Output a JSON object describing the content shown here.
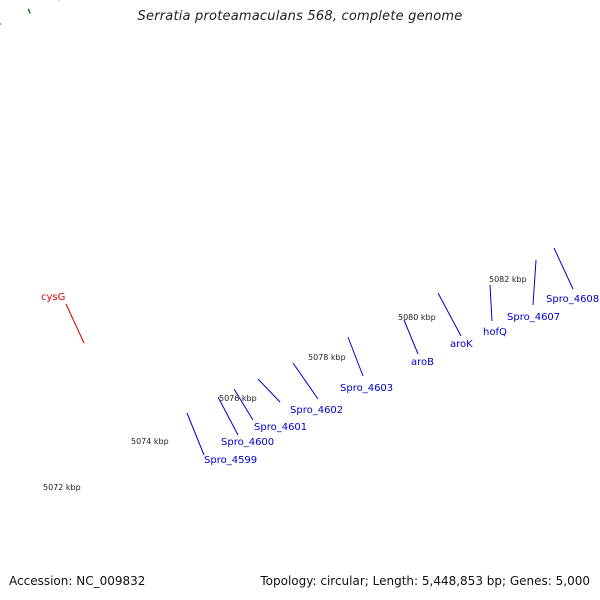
{
  "title": "Serratia proteamaculans 568, complete genome",
  "accession": "Accession: NC_009832",
  "summary": "Topology: circular; Length: 5,448,853 bp; Genes: 5,000",
  "tick_labels": [
    "5072 kbp",
    "5074 kbp",
    "5076 kbp",
    "5078 kbp",
    "5080 kbp",
    "5082 kbp"
  ],
  "colors": {
    "backbone": "#8a8a8a",
    "tick": "#1e7a1e",
    "forward_gene": "#1010ee",
    "reverse_gene": "#ee1010",
    "label_blue": "#0000cc",
    "label_red": "#dd0000"
  },
  "features": [
    {
      "name": "cysG",
      "color": "#ee0000",
      "label_color": "red"
    },
    {
      "name": "Spro_4599",
      "color": "#ee8888",
      "label_color": "blue"
    },
    {
      "name": "Spro_4600",
      "color": "#c8c8c8",
      "label_color": "blue"
    },
    {
      "name": "Spro_4601",
      "color": "#22c8cc",
      "label_color": "blue"
    },
    {
      "name": "Spro_4602",
      "color": "#e0189a",
      "label_color": "blue"
    },
    {
      "name": "Spro_4603",
      "color": "#555555",
      "label_color": "blue"
    },
    {
      "name": "aroB",
      "color": "#4a7fbf",
      "label_color": "blue"
    },
    {
      "name": "aroK",
      "color": "#4a7fbf",
      "label_color": "blue"
    },
    {
      "name": "hofQ",
      "color": "#aaf53a",
      "label_color": "blue"
    },
    {
      "name": "Spro_4607",
      "color": "#1010ee",
      "label_color": "blue"
    },
    {
      "name": "Spro_4608",
      "color": "#99ee66",
      "label_color": "blue"
    }
  ]
}
